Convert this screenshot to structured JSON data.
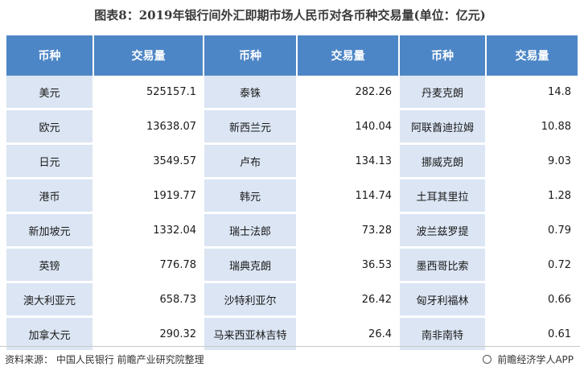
{
  "title": "图表8：2019年银行间外汇即期市场人民币对各币种交易量(单位：亿元)",
  "headers": [
    "币种",
    "交易量",
    "币种",
    "交易量",
    "币种",
    "交易量"
  ],
  "rows": [
    [
      "美元",
      "525157.1",
      "泰铢",
      "282.26",
      "丹麦克朗",
      "14.8"
    ],
    [
      "欧元",
      "13638.07",
      "新西兰元",
      "140.04",
      "阿联酋迪拉姆",
      "10.88"
    ],
    [
      "日元",
      "3549.57",
      "卢布",
      "134.13",
      "挪威克朗",
      "9.03"
    ],
    [
      "港币",
      "1919.77",
      "韩元",
      "114.74",
      "土耳其里拉",
      "1.28"
    ],
    [
      "新加坡元",
      "1332.04",
      "瑞士法郎",
      "73.28",
      "波兰兹罗提",
      "0.79"
    ],
    [
      "英镑",
      "776.78",
      "瑞典克朗",
      "36.53",
      "墨西哥比索",
      "0.72"
    ],
    [
      "澳大利亚元",
      "658.73",
      "沙特利亚尔",
      "26.42",
      "匈牙利福林",
      "0.66"
    ],
    [
      "加拿大元",
      "290.32",
      "马来西亚林吉特",
      "26.4",
      "南非南特",
      "0.61"
    ]
  ],
  "footer": {
    "source": "资料来源：  中国人民银行 前瞻产业研究院整理",
    "brand": "前瞻经济学人APP",
    "brand_icon": "circle-logo-icon"
  },
  "colors": {
    "header_bg": "#4d86c6",
    "currency_cell_bg": "#dbe5f3"
  }
}
